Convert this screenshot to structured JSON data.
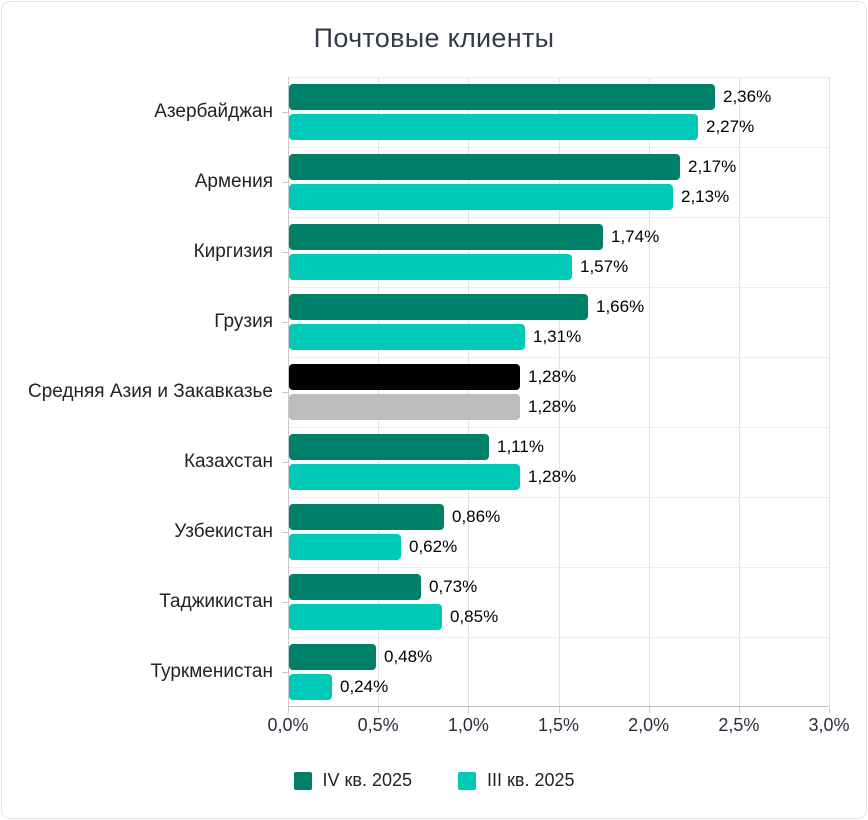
{
  "chart_data": {
    "type": "bar",
    "orientation": "horizontal",
    "title": "Почтовые клиенты",
    "x_axis": {
      "min": 0,
      "max": 3,
      "tick_step": 0.5,
      "tick_labels": [
        "0,0%",
        "0,5%",
        "1,0%",
        "1,5%",
        "2,0%",
        "2,5%",
        "3,0%"
      ]
    },
    "series": [
      {
        "name": "IV кв. 2025",
        "color": "#008069"
      },
      {
        "name": "III кв. 2025",
        "color": "#00C9B7"
      }
    ],
    "rows": [
      {
        "category": "Азербайджан",
        "values": [
          2.36,
          2.27
        ],
        "value_labels": [
          "2,36%",
          "2,27%"
        ]
      },
      {
        "category": "Армения",
        "values": [
          2.17,
          2.13
        ],
        "value_labels": [
          "2,17%",
          "2,13%"
        ]
      },
      {
        "category": "Киргизия",
        "values": [
          1.74,
          1.57
        ],
        "value_labels": [
          "1,74%",
          "1,57%"
        ]
      },
      {
        "category": "Грузия",
        "values": [
          1.66,
          1.31
        ],
        "value_labels": [
          "1,66%",
          "1,31%"
        ]
      },
      {
        "category": "Средняя Азия и Закавказье",
        "values": [
          1.28,
          1.28
        ],
        "value_labels": [
          "1,28%",
          "1,28%"
        ],
        "highlight": true,
        "colors": [
          "#000000",
          "#BDBDBD"
        ]
      },
      {
        "category": "Казахстан",
        "values": [
          1.11,
          1.28
        ],
        "value_labels": [
          "1,11%",
          "1,28%"
        ]
      },
      {
        "category": "Узбекистан",
        "values": [
          0.86,
          0.62
        ],
        "value_labels": [
          "0,86%",
          "0,62%"
        ]
      },
      {
        "category": "Таджикистан",
        "values": [
          0.73,
          0.85
        ],
        "value_labels": [
          "0,73%",
          "0,85%"
        ]
      },
      {
        "category": "Туркменистан",
        "values": [
          0.48,
          0.24
        ],
        "value_labels": [
          "0,48%",
          "0,24%"
        ]
      }
    ],
    "legend": {
      "position": "bottom",
      "items": [
        "IV кв. 2025",
        "III кв. 2025"
      ]
    },
    "grid": true
  },
  "style_colors": {
    "series_1": "#008069",
    "series_2": "#00C9B7",
    "highlight_1": "#000000",
    "highlight_2": "#BDBDBD",
    "grid_line": "#e3e3e3",
    "axis_line": "#c9c9c9",
    "title_text": "#333d49",
    "label_text": "#20242a",
    "card_border": "#e3e3e3"
  }
}
